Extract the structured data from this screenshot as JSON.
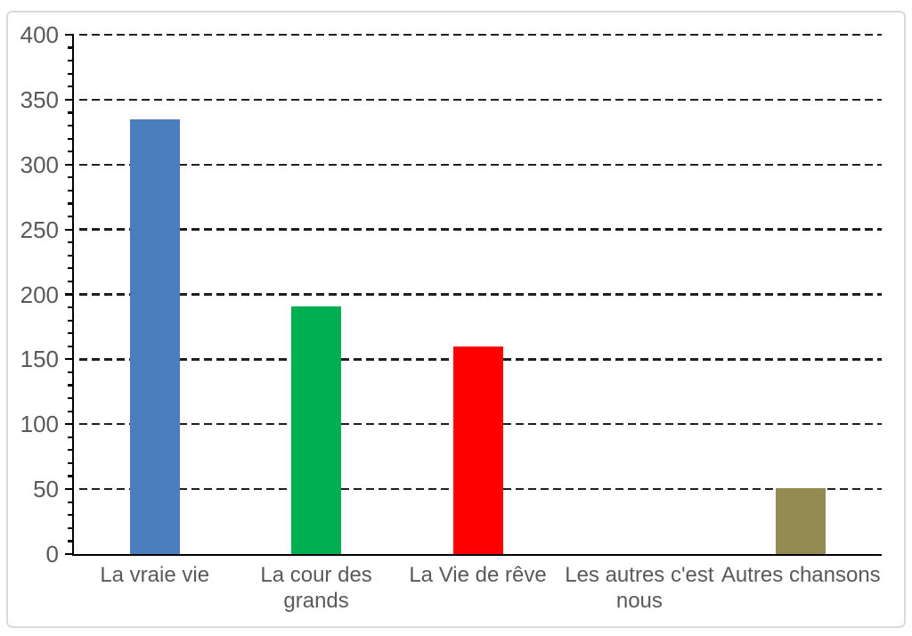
{
  "chart_data": {
    "type": "bar",
    "title": "",
    "xlabel": "",
    "ylabel": "",
    "categories": [
      "La vraie vie",
      "La cour des grands",
      "La Vie de rêve",
      "Les autres c'est nous",
      "Autres chansons"
    ],
    "values": [
      335,
      191,
      160,
      0,
      51
    ],
    "bar_colors": [
      "#4A7EBD",
      "#00B050",
      "#FF0000",
      null,
      "#948A54"
    ],
    "ylim": [
      0,
      400
    ],
    "yticks": [
      0,
      50,
      100,
      150,
      200,
      250,
      300,
      350,
      400
    ],
    "ytick_labels": [
      "0",
      "50",
      "100",
      "150",
      "200",
      "250",
      "300",
      "350",
      "400"
    ],
    "minor_ytick_step": 10,
    "grid": "horizontal-dashed",
    "legend_position": "none"
  },
  "styles": {
    "axis_color": "#000000",
    "grid_color": "#1F1F1F",
    "tick_label_color": "#595959",
    "frame_border_color": "#D9D9D9",
    "background_color": "#FFFFFF"
  }
}
